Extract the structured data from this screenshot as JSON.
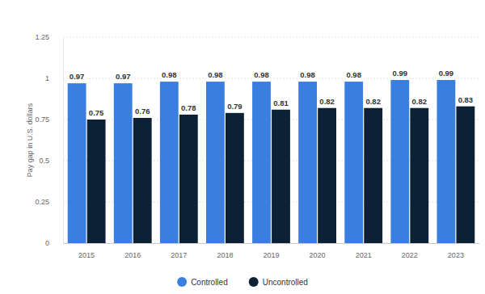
{
  "chart_data": {
    "type": "bar",
    "ylabel": "Pay gap in U.S. dollars",
    "categories": [
      "2015",
      "2016",
      "2017",
      "2018",
      "2019",
      "2020",
      "2021",
      "2022",
      "2023"
    ],
    "series": [
      {
        "name": "Controlled",
        "color": "#3a7fe0",
        "values": [
          0.97,
          0.97,
          0.98,
          0.98,
          0.98,
          0.98,
          0.98,
          0.99,
          0.99
        ]
      },
      {
        "name": "Uncontrolled",
        "color": "#0d2136",
        "values": [
          0.75,
          0.76,
          0.78,
          0.79,
          0.81,
          0.82,
          0.82,
          0.82,
          0.83
        ]
      }
    ],
    "ylim": [
      0,
      1.25
    ],
    "yticks": [
      0,
      0.25,
      0.5,
      0.75,
      1,
      1.25
    ],
    "grid": true,
    "legend": "bottom",
    "data_labels": true
  }
}
